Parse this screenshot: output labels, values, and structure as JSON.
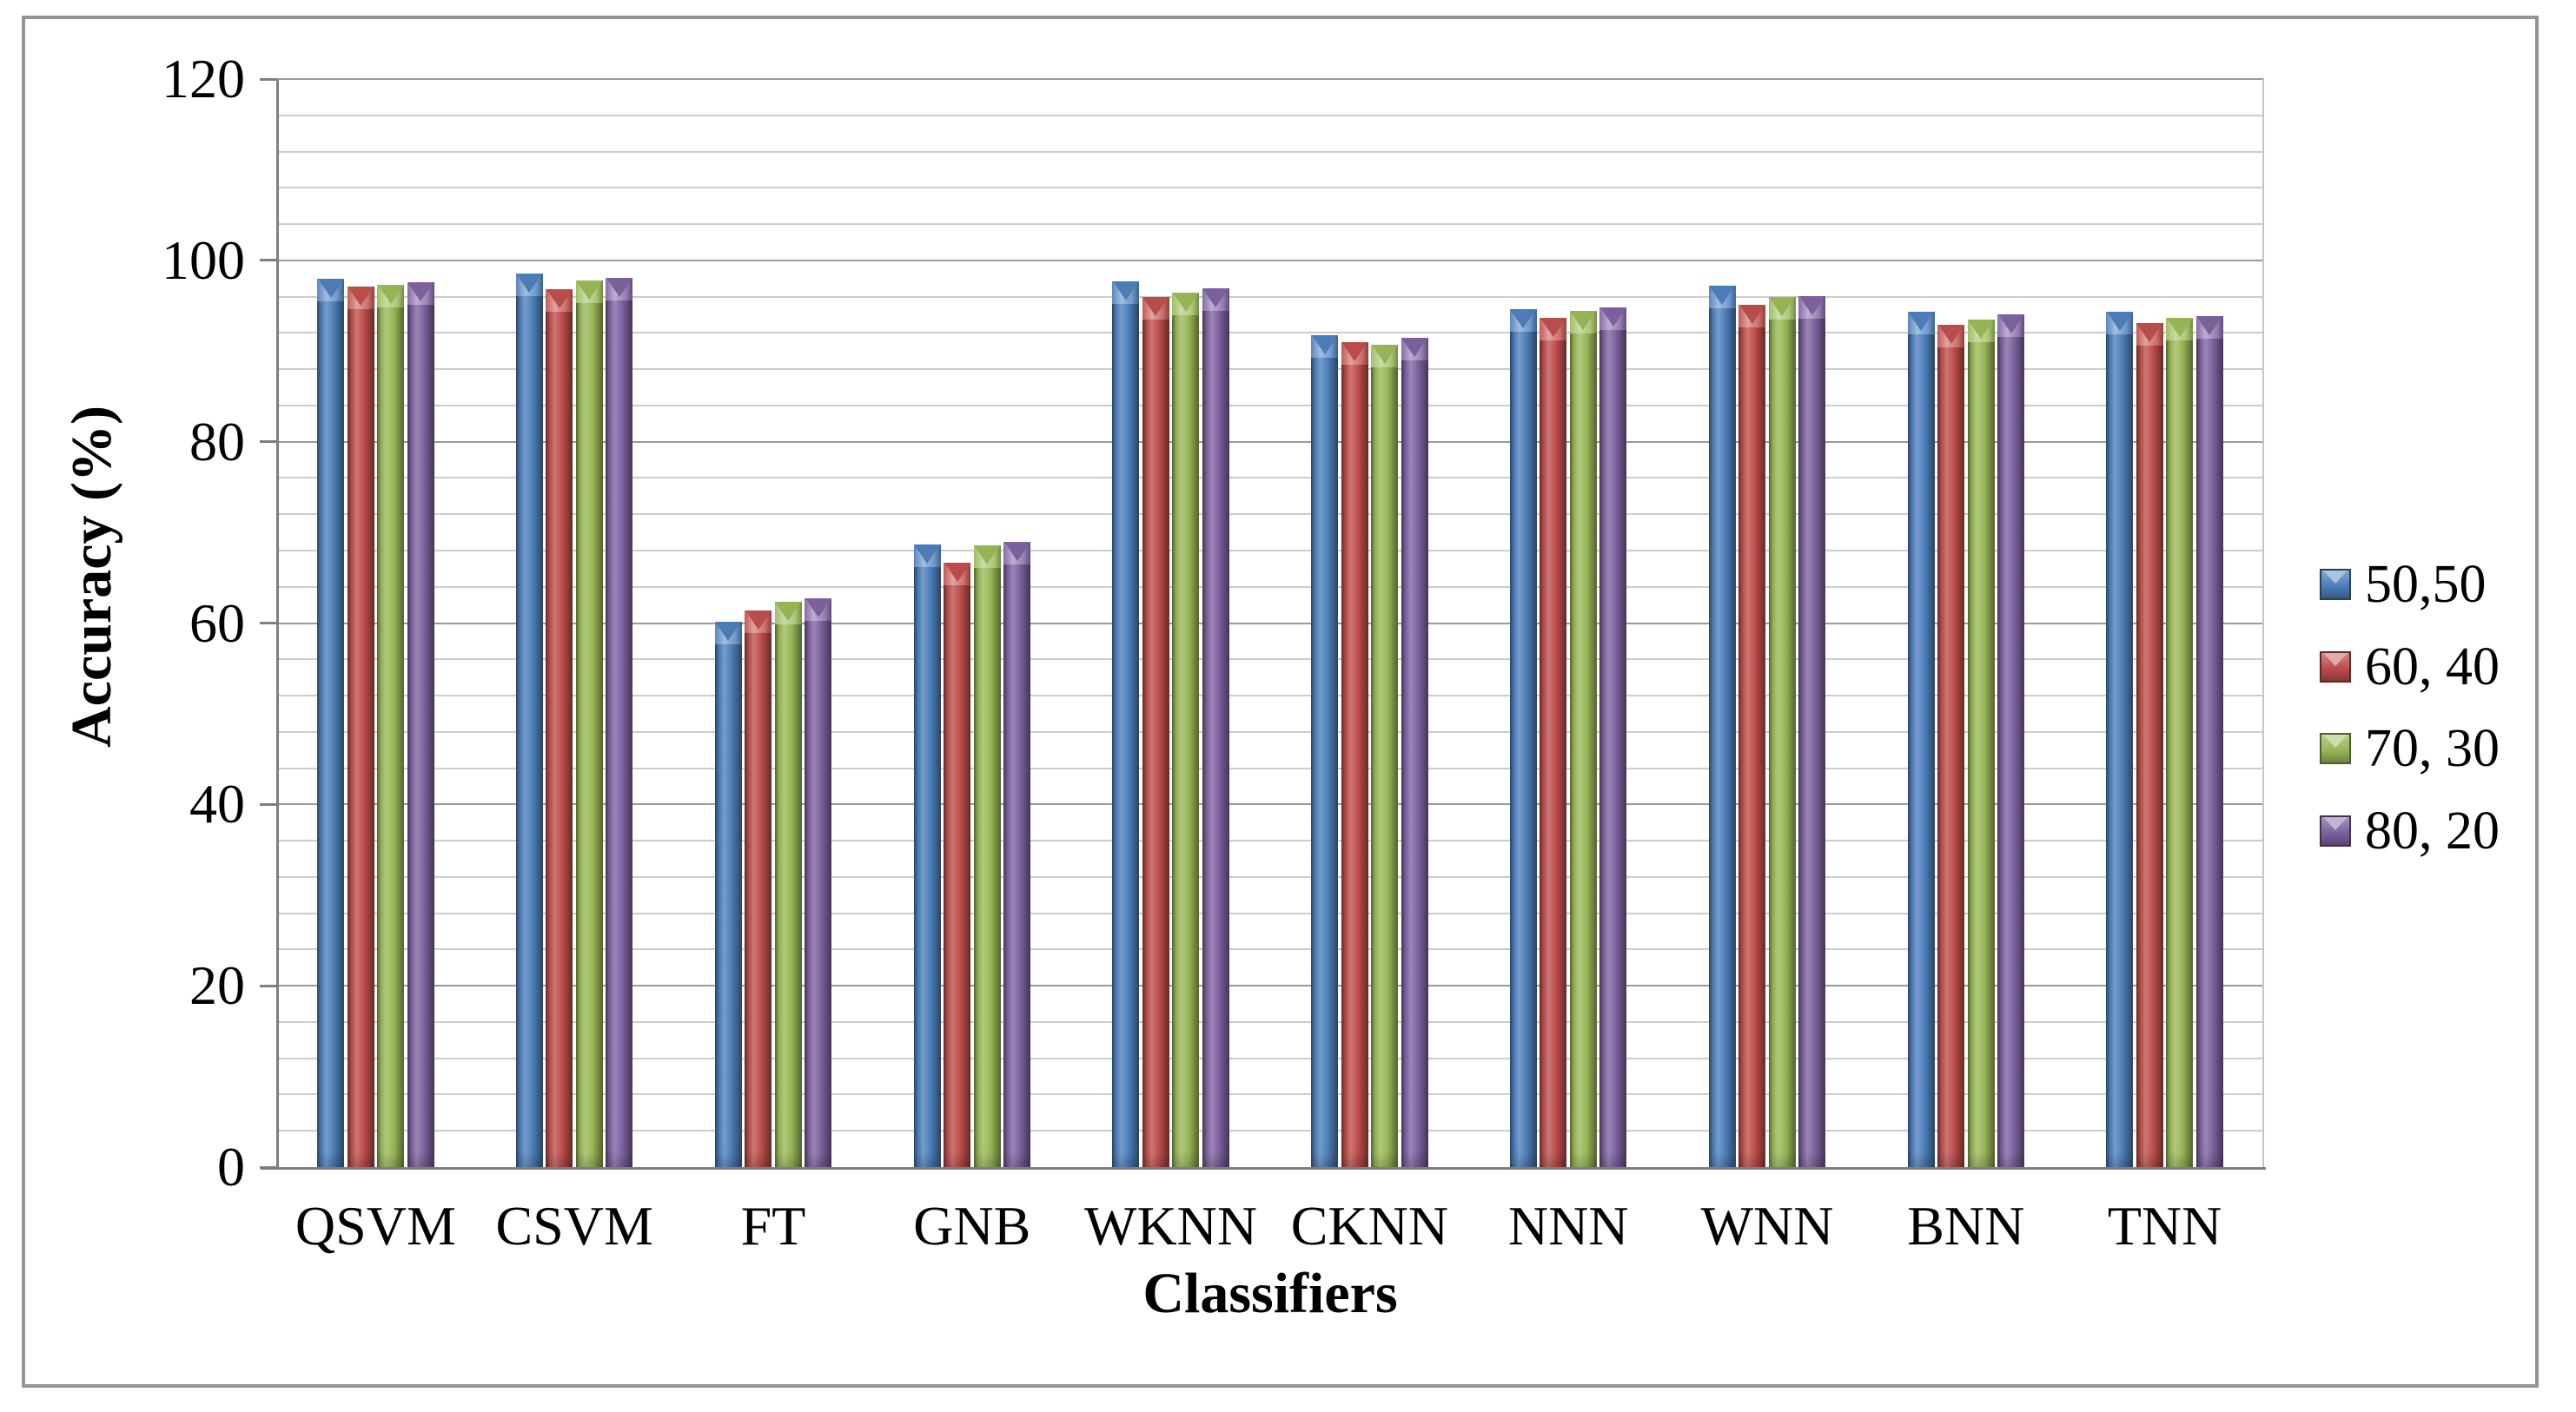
{
  "chart_data": {
    "type": "bar",
    "title": "",
    "xlabel": "Classifiers",
    "ylabel": "Accuracy (%)",
    "ylim": [
      0,
      120
    ],
    "y_major_ticks": [
      0,
      20,
      40,
      60,
      80,
      100,
      120
    ],
    "y_minor_unit": 4,
    "grid": "horizontal major and minor gridlines",
    "legend_position": "right",
    "categories": [
      "QSVM",
      "CSVM",
      "FT",
      "GNB",
      "WKNN",
      "CKNN",
      "NNN",
      "WNN",
      "BNN",
      "TNN"
    ],
    "series": [
      {
        "name": "50,50",
        "color": "#4F81BD",
        "values": [
          98.0,
          98.5,
          60.1,
          68.7,
          97.7,
          91.7,
          94.6,
          97.2,
          94.3,
          94.3
        ]
      },
      {
        "name": "60, 40",
        "color": "#C0504D",
        "values": [
          97.1,
          96.8,
          61.4,
          66.7,
          96.0,
          91.0,
          93.7,
          95.1,
          92.9,
          93.1
        ]
      },
      {
        "name": "70, 30",
        "color": "#9BBB59",
        "values": [
          97.3,
          97.8,
          62.3,
          68.6,
          96.4,
          90.7,
          94.4,
          96.0,
          93.5,
          93.7
        ]
      },
      {
        "name": "80, 20",
        "color": "#8064A2",
        "values": [
          97.6,
          98.1,
          62.7,
          69.0,
          96.9,
          91.5,
          94.8,
          96.1,
          94.0,
          93.9
        ]
      }
    ]
  }
}
